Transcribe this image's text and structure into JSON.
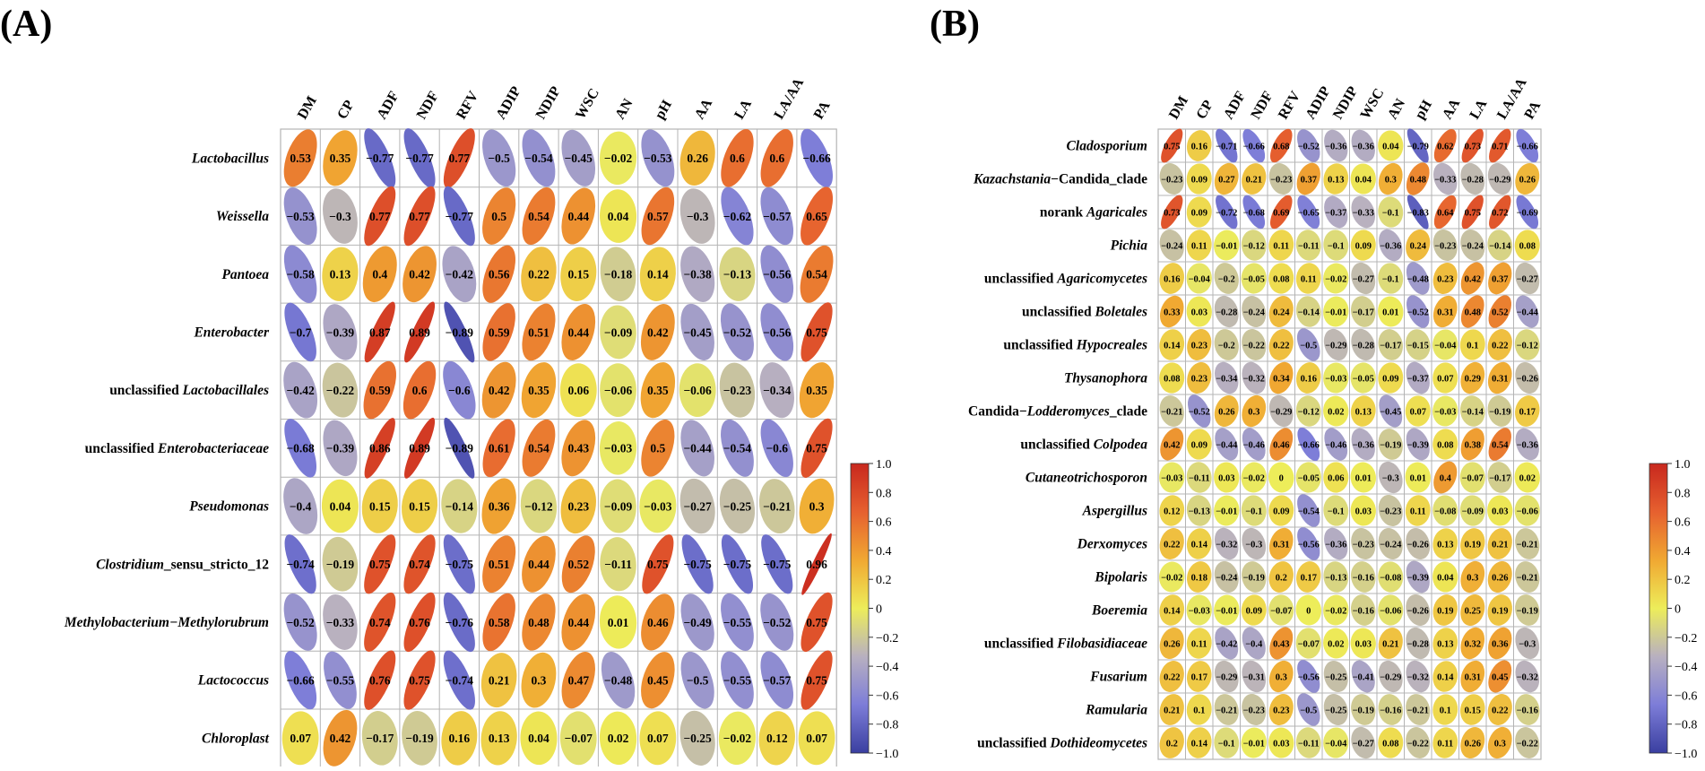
{
  "chart_data": [
    {
      "type": "heatmap",
      "style": "correlation-ellipse",
      "panel_label": "(A)",
      "columns": [
        "DM",
        "CP",
        "ADF",
        "NDF",
        "RFV",
        "ADIP",
        "NDIP",
        "WSC",
        "AN",
        "pH",
        "AA",
        "LA",
        "LA/AA",
        "PA"
      ],
      "rows": [
        {
          "pre": "",
          "italic": "Lactobacillus",
          "post": ""
        },
        {
          "pre": "",
          "italic": "Weissella",
          "post": ""
        },
        {
          "pre": "",
          "italic": "Pantoea",
          "post": ""
        },
        {
          "pre": "",
          "italic": "Enterobacter",
          "post": ""
        },
        {
          "pre": "unclassified ",
          "italic": "Lactobacillales",
          "post": ""
        },
        {
          "pre": "unclassified ",
          "italic": "Enterobacteriaceae",
          "post": ""
        },
        {
          "pre": "",
          "italic": "Pseudomonas",
          "post": ""
        },
        {
          "pre": "",
          "italic": "Clostridium",
          "post": "_sensu_stricto_12"
        },
        {
          "pre": "",
          "italic": "Methylobacterium−Methylorubrum",
          "post": ""
        },
        {
          "pre": "",
          "italic": "Lactococcus",
          "post": ""
        },
        {
          "pre": "",
          "italic": "Chloroplast",
          "post": ""
        }
      ],
      "values": [
        [
          0.53,
          0.35,
          -0.77,
          -0.77,
          0.77,
          -0.5,
          -0.54,
          -0.45,
          -0.02,
          -0.53,
          0.26,
          0.6,
          0.6,
          -0.66
        ],
        [
          -0.53,
          -0.3,
          0.77,
          0.77,
          -0.77,
          0.5,
          0.54,
          0.44,
          0.04,
          0.57,
          -0.3,
          -0.62,
          -0.57,
          0.65
        ],
        [
          -0.58,
          0.13,
          0.4,
          0.42,
          -0.42,
          0.56,
          0.22,
          0.15,
          -0.18,
          0.14,
          -0.38,
          -0.13,
          -0.56,
          0.54
        ],
        [
          -0.7,
          -0.39,
          0.87,
          0.89,
          -0.89,
          0.59,
          0.51,
          0.44,
          -0.09,
          0.42,
          -0.45,
          -0.52,
          -0.56,
          0.75
        ],
        [
          -0.42,
          -0.22,
          0.59,
          0.6,
          -0.6,
          0.42,
          0.35,
          0.06,
          -0.06,
          0.35,
          -0.06,
          -0.23,
          -0.34,
          0.35
        ],
        [
          -0.68,
          -0.39,
          0.86,
          0.89,
          -0.89,
          0.61,
          0.54,
          0.43,
          -0.03,
          0.5,
          -0.44,
          -0.54,
          -0.6,
          0.75
        ],
        [
          -0.4,
          0.04,
          0.15,
          0.15,
          -0.14,
          0.36,
          -0.12,
          0.23,
          -0.09,
          -0.03,
          -0.27,
          -0.25,
          -0.21,
          0.3
        ],
        [
          -0.74,
          -0.19,
          0.75,
          0.74,
          -0.75,
          0.51,
          0.44,
          0.52,
          -0.11,
          0.75,
          -0.75,
          -0.75,
          -0.75,
          0.96
        ],
        [
          -0.52,
          -0.33,
          0.74,
          0.76,
          -0.76,
          0.58,
          0.48,
          0.44,
          0.01,
          0.46,
          -0.49,
          -0.55,
          -0.52,
          0.75
        ],
        [
          -0.66,
          -0.55,
          0.76,
          0.75,
          -0.74,
          0.21,
          0.3,
          0.47,
          -0.48,
          0.45,
          -0.5,
          -0.55,
          -0.57,
          0.75
        ],
        [
          0.07,
          0.42,
          -0.17,
          -0.19,
          0.16,
          0.13,
          0.04,
          -0.07,
          0.02,
          0.07,
          -0.25,
          -0.02,
          0.12,
          0.07
        ]
      ],
      "colorbar": {
        "range": [
          -1.0,
          1.0
        ],
        "ticks": [
          "1.0",
          "0.8",
          "0.6",
          "0.4",
          "0.2",
          "0",
          "−0.2",
          "−0.4",
          "−0.6",
          "−0.8",
          "−1.0"
        ]
      }
    },
    {
      "type": "heatmap",
      "style": "correlation-ellipse",
      "panel_label": "(B)",
      "columns": [
        "DM",
        "CP",
        "ADF",
        "NDF",
        "RFV",
        "ADIP",
        "NDIP",
        "WSC",
        "AN",
        "pH",
        "AA",
        "LA",
        "LA/AA",
        "PA"
      ],
      "rows": [
        {
          "pre": "",
          "italic": "Cladosporium",
          "post": ""
        },
        {
          "pre": "",
          "italic": "Kazachstania",
          "post": "−Candida_clade"
        },
        {
          "pre": "norank ",
          "italic": "Agaricales",
          "post": ""
        },
        {
          "pre": "",
          "italic": "Pichia",
          "post": ""
        },
        {
          "pre": "unclassified ",
          "italic": "Agaricomycetes",
          "post": ""
        },
        {
          "pre": "unclassified ",
          "italic": "Boletales",
          "post": ""
        },
        {
          "pre": "unclassified ",
          "italic": "Hypocreales",
          "post": ""
        },
        {
          "pre": "",
          "italic": "Thysanophora",
          "post": ""
        },
        {
          "pre": "Candida−",
          "italic": "Lodderomyces",
          "post": "_clade"
        },
        {
          "pre": "unclassified ",
          "italic": "Colpodea",
          "post": ""
        },
        {
          "pre": "",
          "italic": "Cutaneotrichosporon",
          "post": ""
        },
        {
          "pre": "",
          "italic": "Aspergillus",
          "post": ""
        },
        {
          "pre": "",
          "italic": "Derxomyces",
          "post": ""
        },
        {
          "pre": "",
          "italic": "Bipolaris",
          "post": ""
        },
        {
          "pre": "",
          "italic": "Boeremia",
          "post": ""
        },
        {
          "pre": "unclassified ",
          "italic": "Filobasidiaceae",
          "post": ""
        },
        {
          "pre": "",
          "italic": "Fusarium",
          "post": ""
        },
        {
          "pre": "",
          "italic": "Ramularia",
          "post": ""
        },
        {
          "pre": "unclassified ",
          "italic": "Dothideomycetes",
          "post": ""
        }
      ],
      "values": [
        [
          0.75,
          0.16,
          -0.71,
          -0.66,
          0.68,
          -0.52,
          -0.36,
          -0.36,
          0.04,
          -0.79,
          0.62,
          0.73,
          0.71,
          -0.66
        ],
        [
          -0.23,
          0.09,
          0.27,
          0.21,
          -0.23,
          0.37,
          0.13,
          0.04,
          0.3,
          0.48,
          -0.33,
          -0.28,
          -0.29,
          0.26
        ],
        [
          0.73,
          0.09,
          -0.72,
          -0.68,
          0.69,
          -0.65,
          -0.37,
          -0.33,
          -0.1,
          -0.83,
          0.64,
          0.75,
          0.72,
          -0.69
        ],
        [
          -0.24,
          0.11,
          -0.01,
          -0.12,
          0.11,
          -0.11,
          -0.1,
          0.09,
          -0.36,
          0.24,
          -0.23,
          -0.24,
          -0.14,
          0.08
        ],
        [
          0.16,
          -0.04,
          -0.2,
          -0.05,
          0.08,
          0.11,
          -0.02,
          -0.27,
          -0.1,
          -0.48,
          0.23,
          0.42,
          0.37,
          -0.27
        ],
        [
          0.33,
          0.03,
          -0.28,
          -0.24,
          0.24,
          -0.14,
          -0.01,
          -0.17,
          0.01,
          -0.52,
          0.31,
          0.48,
          0.52,
          -0.44
        ],
        [
          0.14,
          0.23,
          -0.2,
          -0.22,
          0.22,
          -0.5,
          -0.29,
          -0.28,
          -0.17,
          -0.15,
          -0.04,
          0.1,
          0.22,
          -0.12
        ],
        [
          0.08,
          0.23,
          -0.34,
          -0.32,
          0.34,
          0.16,
          -0.03,
          -0.05,
          0.09,
          -0.37,
          0.07,
          0.29,
          0.31,
          -0.26
        ],
        [
          -0.21,
          -0.52,
          0.26,
          0.3,
          -0.29,
          -0.12,
          0.02,
          0.13,
          -0.45,
          0.07,
          -0.03,
          -0.14,
          -0.19,
          0.17
        ],
        [
          0.42,
          0.09,
          -0.44,
          -0.46,
          0.46,
          -0.66,
          -0.46,
          -0.36,
          -0.19,
          -0.39,
          0.08,
          0.38,
          0.54,
          -0.36
        ],
        [
          -0.03,
          -0.11,
          0.03,
          -0.02,
          0,
          -0.05,
          0.06,
          0.01,
          -0.3,
          0.01,
          0.4,
          -0.07,
          -0.17,
          0.02
        ],
        [
          0.12,
          -0.13,
          -0.01,
          -0.1,
          0.09,
          -0.54,
          -0.1,
          0.03,
          -0.23,
          0.11,
          -0.08,
          -0.09,
          0.03,
          -0.06
        ],
        [
          0.22,
          0.14,
          -0.32,
          -0.3,
          0.31,
          -0.56,
          -0.36,
          -0.23,
          -0.24,
          -0.26,
          0.13,
          0.19,
          0.21,
          -0.21
        ],
        [
          -0.02,
          0.18,
          -0.24,
          -0.19,
          0.2,
          0.17,
          -0.13,
          -0.16,
          -0.08,
          -0.39,
          0.04,
          0.3,
          0.26,
          -0.21
        ],
        [
          0.14,
          -0.03,
          -0.01,
          0.09,
          -0.07,
          0,
          -0.02,
          -0.16,
          -0.06,
          -0.26,
          0.19,
          0.25,
          0.19,
          -0.19
        ],
        [
          0.26,
          0.11,
          -0.42,
          -0.4,
          0.43,
          -0.07,
          0.02,
          0.03,
          0.21,
          -0.28,
          0.13,
          0.32,
          0.36,
          -0.3
        ],
        [
          0.22,
          0.17,
          -0.29,
          -0.31,
          0.3,
          -0.56,
          -0.25,
          -0.41,
          -0.29,
          -0.32,
          0.14,
          0.31,
          0.45,
          -0.32
        ],
        [
          0.21,
          0.1,
          -0.21,
          -0.23,
          0.23,
          -0.5,
          -0.25,
          -0.19,
          -0.16,
          -0.21,
          0.1,
          0.15,
          0.22,
          -0.16
        ],
        [
          0.2,
          0.14,
          -0.1,
          -0.01,
          0.03,
          -0.11,
          -0.04,
          -0.27,
          0.08,
          -0.22,
          0.11,
          0.26,
          0.3,
          -0.22
        ]
      ],
      "colorbar": {
        "range": [
          -1.0,
          1.0
        ],
        "ticks": [
          "1.0",
          "0.8",
          "0.6",
          "0.4",
          "0.2",
          "0",
          "−0.2",
          "−0.4",
          "−0.6",
          "−0.8",
          "−1.0"
        ]
      }
    }
  ],
  "colors": {
    "scale": [
      "#3a3fa0",
      "#7d7dd8",
      "#b8b0c0",
      "#eded5a",
      "#f0a832",
      "#e6602f",
      "#c8281e"
    ],
    "grid": "#b4b4b4",
    "text": "#000000"
  }
}
